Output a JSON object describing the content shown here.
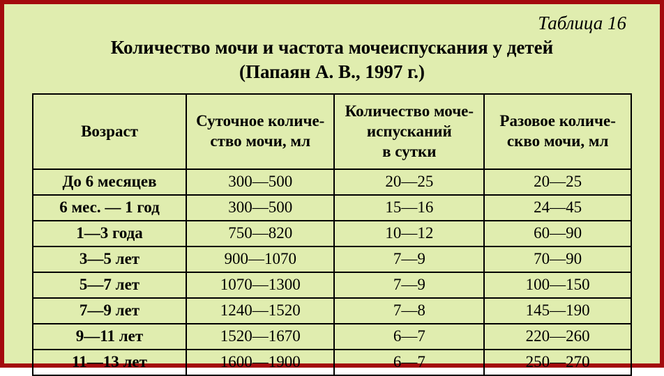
{
  "table_number": "Таблица 16",
  "title_line1": "Количество мочи и частота мочеиспускания у детей",
  "title_line2": "(Папаян А. В., 1997 г.)",
  "headers": {
    "age": "Возраст",
    "daily": "Суточное количе-\nство мочи, мл",
    "freq": "Количество моче-\nиспусканий\nв сутки",
    "single": "Разовое количе-\nскво мочи, мл"
  },
  "rows": [
    {
      "age": "До 6 месяцев",
      "daily": "300—500",
      "freq": "20—25",
      "single": "20—25"
    },
    {
      "age": "6 мес. — 1 год",
      "daily": "300—500",
      "freq": "15—16",
      "single": "24—45"
    },
    {
      "age": "1—3 года",
      "daily": "750—820",
      "freq": "10—12",
      "single": "60—90"
    },
    {
      "age": "3—5 лет",
      "daily": "900—1070",
      "freq": "7—9",
      "single": "70—90"
    },
    {
      "age": "5—7 лет",
      "daily": "1070—1300",
      "freq": "7—9",
      "single": "100—150"
    },
    {
      "age": "7—9 лет",
      "daily": "1240—1520",
      "freq": "7—8",
      "single": "145—190"
    },
    {
      "age": "9—11 лет",
      "daily": "1520—1670",
      "freq": "6—7",
      "single": "220—260"
    },
    {
      "age": "11—13 лет",
      "daily": "1600—1900",
      "freq": "6—7",
      "single": "250—270"
    }
  ],
  "style": {
    "outer_border_color": "#a30a0d",
    "background_color": "#e0edaf",
    "cell_border_color": "#000000",
    "text_color": "#000000",
    "font_family": "Times New Roman",
    "title_fontsize_pt": 20,
    "header_fontsize_pt": 17,
    "cell_fontsize_pt": 17
  }
}
